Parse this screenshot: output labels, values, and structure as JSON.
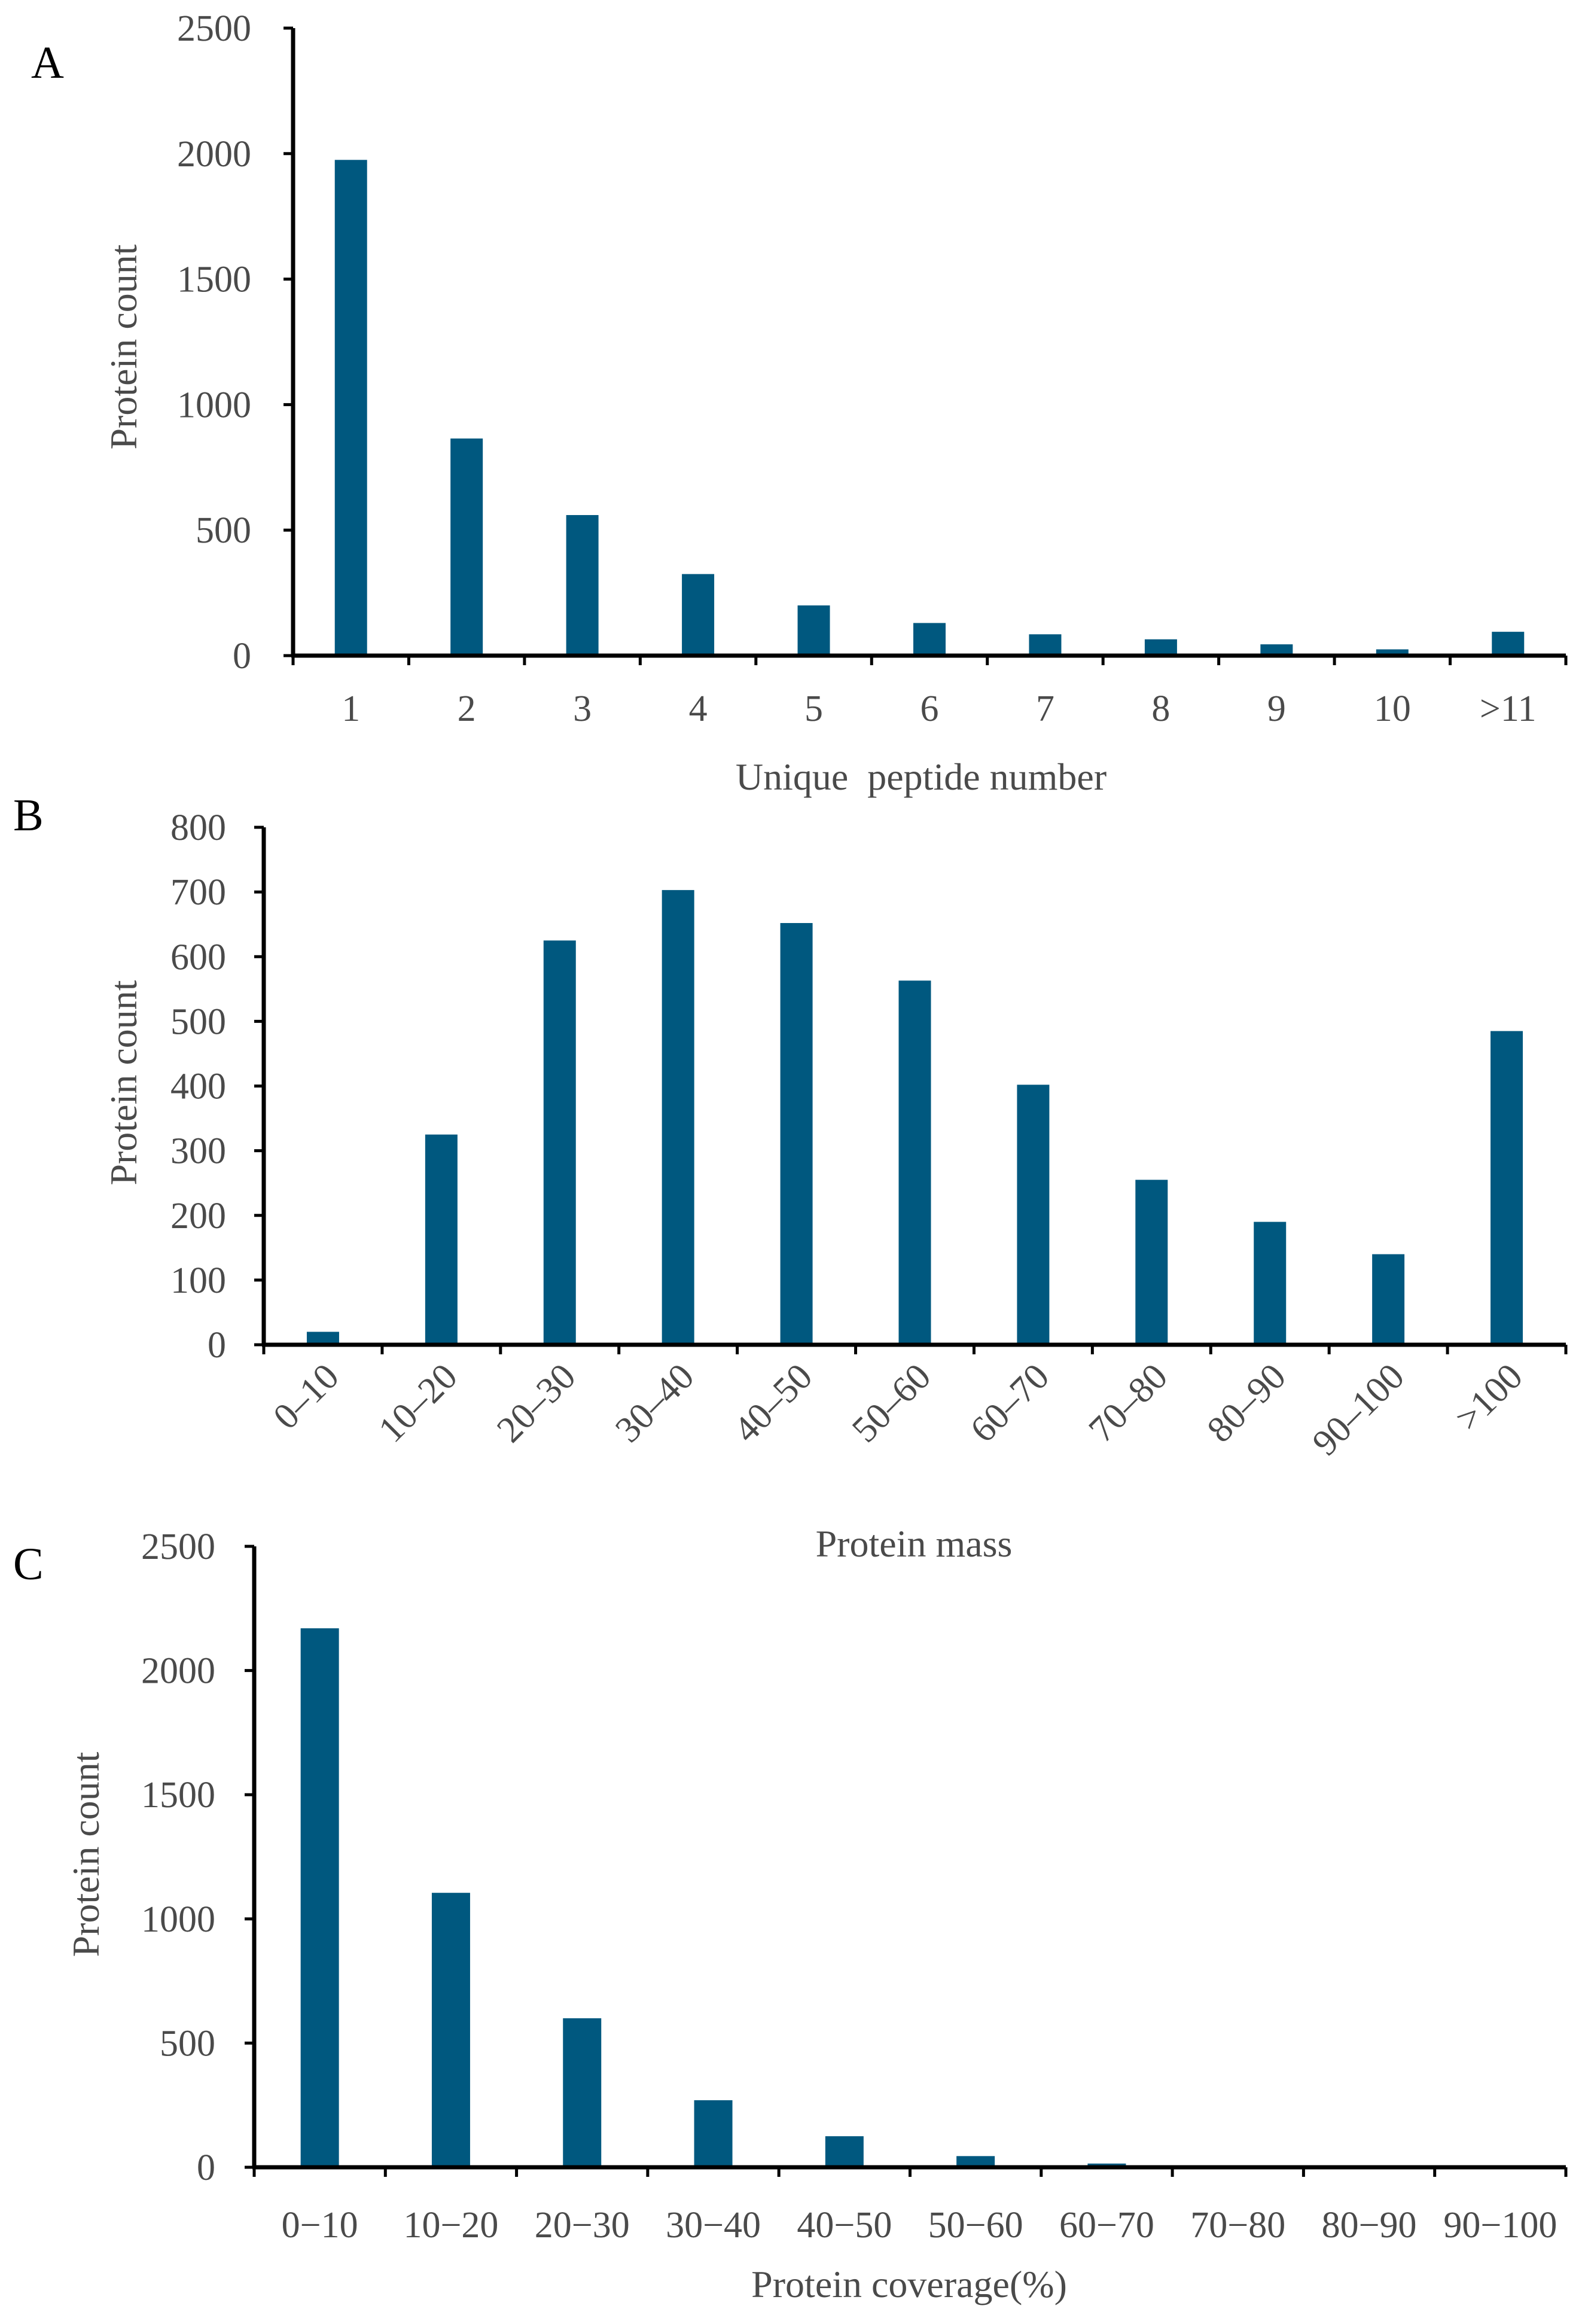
{
  "colors": {
    "bar": "#00587f",
    "axis": "#000000",
    "text": "#4a4a4a"
  },
  "chart_data": [
    {
      "panel": "A",
      "type": "bar",
      "categories": [
        "1",
        "2",
        "3",
        "4",
        "5",
        "6",
        "7",
        "8",
        "9",
        "10",
        ">11"
      ],
      "values": [
        1975,
        865,
        560,
        325,
        200,
        130,
        85,
        65,
        45,
        25,
        95
      ],
      "title": "",
      "xlabel": "Unique  peptide number",
      "ylabel": "Protein count",
      "ylim": [
        0,
        2500
      ],
      "yticks": [
        "0",
        "500",
        "1000",
        "1500",
        "2000",
        "2500"
      ],
      "rotate_xticks": false,
      "grid": false
    },
    {
      "panel": "B",
      "type": "bar",
      "categories": [
        "0–10",
        "10–20",
        "20–30",
        "30–40",
        "40–50",
        "50–60",
        "60–70",
        "70–80",
        "80–90",
        "90–100",
        ">100"
      ],
      "values": [
        20,
        325,
        625,
        703,
        652,
        563,
        402,
        255,
        190,
        140,
        485
      ],
      "title": "",
      "xlabel": "Protein mass",
      "ylabel": "Protein count",
      "ylim": [
        0,
        800
      ],
      "yticks": [
        "0",
        "100",
        "200",
        "300",
        "400",
        "500",
        "600",
        "700",
        "800"
      ],
      "rotate_xticks": true,
      "grid": false
    },
    {
      "panel": "C",
      "type": "bar",
      "categories": [
        "0−10",
        "10−20",
        "20−30",
        "30−40",
        "40−50",
        "50−60",
        "60−70",
        "70−80",
        "80−90",
        "90−100"
      ],
      "values": [
        2170,
        1105,
        600,
        270,
        125,
        45,
        15,
        0,
        0,
        0
      ],
      "title": "",
      "xlabel": "Protein coverage(%)",
      "ylabel": "Protein count",
      "ylim": [
        0,
        2500
      ],
      "yticks": [
        "0",
        "500",
        "1000",
        "1500",
        "2000",
        "2500"
      ],
      "rotate_xticks": false,
      "grid": false
    }
  ]
}
